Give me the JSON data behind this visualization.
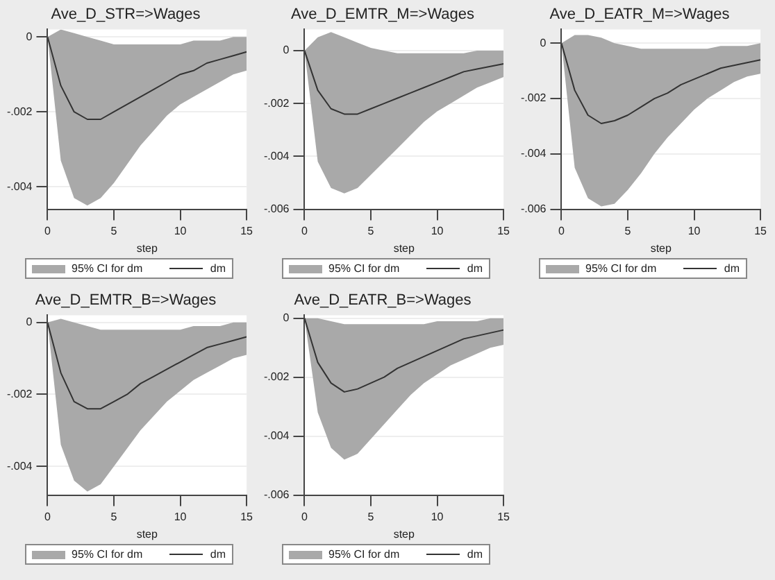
{
  "chart_data": [
    {
      "type": "line",
      "title": "Ave_D_STR=>Wages",
      "xlabel": "step",
      "annotations": [
        "95% CI for dm"
      ],
      "x": [
        0,
        1,
        2,
        3,
        4,
        5,
        6,
        7,
        8,
        9,
        10,
        11,
        12,
        13,
        14,
        15
      ],
      "xlim": [
        0,
        15
      ],
      "xticks": [
        0,
        5,
        10,
        15
      ],
      "ylim": [
        -0.0046,
        0.0002
      ],
      "yticks": [
        {
          "value": 0,
          "label": "0"
        },
        {
          "value": -0.002,
          "label": "-.002"
        },
        {
          "value": -0.004,
          "label": "-.004"
        }
      ],
      "grid": "y",
      "legend": "bottom",
      "series": [
        {
          "name": "dm",
          "type": "line",
          "color": "#333333",
          "values": [
            0,
            -0.0013,
            -0.002,
            -0.0022,
            -0.0022,
            -0.002,
            -0.0018,
            -0.0016,
            -0.0014,
            -0.0012,
            -0.001,
            -0.0009,
            -0.0007,
            -0.0006,
            -0.0005,
            -0.0004
          ],
          "upper": [
            0,
            0.0002,
            0.0001,
            0,
            -0.0001,
            -0.0002,
            -0.0002,
            -0.0002,
            -0.0002,
            -0.0002,
            -0.0002,
            -0.0001,
            -0.0001,
            -0.0001,
            0,
            0
          ],
          "lower": [
            0,
            -0.0033,
            -0.0043,
            -0.0045,
            -0.0043,
            -0.0039,
            -0.0034,
            -0.0029,
            -0.0025,
            -0.0021,
            -0.0018,
            -0.0016,
            -0.0014,
            -0.0012,
            -0.001,
            -0.0009
          ]
        }
      ]
    },
    {
      "type": "line",
      "title": "Ave_D_EMTR_M=>Wages",
      "xlabel": "step",
      "annotations": [
        "95% CI for dm"
      ],
      "x": [
        0,
        1,
        2,
        3,
        4,
        5,
        6,
        7,
        8,
        9,
        10,
        11,
        12,
        13,
        14,
        15
      ],
      "xlim": [
        0,
        15
      ],
      "xticks": [
        0,
        5,
        10,
        15
      ],
      "ylim": [
        -0.006,
        0.0008
      ],
      "yticks": [
        {
          "value": 0,
          "label": "0"
        },
        {
          "value": -0.002,
          "label": "-.002"
        },
        {
          "value": -0.004,
          "label": "-.004"
        },
        {
          "value": -0.006,
          "label": "-.006"
        }
      ],
      "grid": "y",
      "legend": "bottom",
      "series": [
        {
          "name": "dm",
          "type": "line",
          "color": "#333333",
          "values": [
            0,
            -0.0015,
            -0.0022,
            -0.0024,
            -0.0024,
            -0.0022,
            -0.002,
            -0.0018,
            -0.0016,
            -0.0014,
            -0.0012,
            -0.001,
            -0.0008,
            -0.0007,
            -0.0006,
            -0.0005
          ],
          "upper": [
            0,
            0.0005,
            0.0007,
            0.0005,
            0.0003,
            0.0001,
            0,
            -0.0001,
            -0.0001,
            -0.0001,
            -0.0001,
            -0.0001,
            -0.0001,
            0,
            0,
            0
          ],
          "lower": [
            0,
            -0.0042,
            -0.0052,
            -0.0054,
            -0.0052,
            -0.0047,
            -0.0042,
            -0.0037,
            -0.0032,
            -0.0027,
            -0.0023,
            -0.002,
            -0.0017,
            -0.0014,
            -0.0012,
            -0.001
          ]
        }
      ]
    },
    {
      "type": "line",
      "title": "Ave_D_EATR_M=>Wages",
      "xlabel": "step",
      "annotations": [
        "95% CI for dm"
      ],
      "x": [
        0,
        1,
        2,
        3,
        4,
        5,
        6,
        7,
        8,
        9,
        10,
        11,
        12,
        13,
        14,
        15
      ],
      "xlim": [
        0,
        15
      ],
      "xticks": [
        0,
        5,
        10,
        15
      ],
      "ylim": [
        -0.006,
        0.0005
      ],
      "yticks": [
        {
          "value": 0,
          "label": "0"
        },
        {
          "value": -0.002,
          "label": "-.002"
        },
        {
          "value": -0.004,
          "label": "-.004"
        },
        {
          "value": -0.006,
          "label": "-.006"
        }
      ],
      "grid": "y",
      "legend": "bottom",
      "series": [
        {
          "name": "dm",
          "type": "line",
          "color": "#333333",
          "values": [
            0,
            -0.0017,
            -0.0026,
            -0.0029,
            -0.0028,
            -0.0026,
            -0.0023,
            -0.002,
            -0.0018,
            -0.0015,
            -0.0013,
            -0.0011,
            -0.0009,
            -0.0008,
            -0.0007,
            -0.0006
          ],
          "upper": [
            0,
            0.0003,
            0.0003,
            0.0002,
            0,
            -0.0001,
            -0.0002,
            -0.0002,
            -0.0002,
            -0.0002,
            -0.0002,
            -0.0002,
            -0.0001,
            -0.0001,
            -0.0001,
            0
          ],
          "lower": [
            0,
            -0.0045,
            -0.0056,
            -0.0059,
            -0.0058,
            -0.0053,
            -0.0047,
            -0.004,
            -0.0034,
            -0.0029,
            -0.0024,
            -0.002,
            -0.0017,
            -0.0014,
            -0.0012,
            -0.0011
          ]
        }
      ]
    },
    {
      "type": "line",
      "title": "Ave_D_EMTR_B=>Wages",
      "xlabel": "step",
      "annotations": [
        "95% CI for dm"
      ],
      "x": [
        0,
        1,
        2,
        3,
        4,
        5,
        6,
        7,
        8,
        9,
        10,
        11,
        12,
        13,
        14,
        15
      ],
      "xlim": [
        0,
        15
      ],
      "xticks": [
        0,
        5,
        10,
        15
      ],
      "ylim": [
        -0.0048,
        0.0002
      ],
      "yticks": [
        {
          "value": 0,
          "label": "0"
        },
        {
          "value": -0.002,
          "label": "-.002"
        },
        {
          "value": -0.004,
          "label": "-.004"
        }
      ],
      "grid": "y",
      "legend": "bottom",
      "series": [
        {
          "name": "dm",
          "type": "line",
          "color": "#333333",
          "values": [
            0,
            -0.0014,
            -0.0022,
            -0.0024,
            -0.0024,
            -0.0022,
            -0.002,
            -0.0017,
            -0.0015,
            -0.0013,
            -0.0011,
            -0.0009,
            -0.0007,
            -0.0006,
            -0.0005,
            -0.0004
          ],
          "upper": [
            0,
            0.0001,
            0,
            -0.0001,
            -0.0002,
            -0.0002,
            -0.0002,
            -0.0002,
            -0.0002,
            -0.0002,
            -0.0002,
            -0.0001,
            -0.0001,
            -0.0001,
            0,
            0
          ],
          "lower": [
            0,
            -0.0034,
            -0.0044,
            -0.0047,
            -0.0045,
            -0.004,
            -0.0035,
            -0.003,
            -0.0026,
            -0.0022,
            -0.0019,
            -0.0016,
            -0.0014,
            -0.0012,
            -0.001,
            -0.0009
          ]
        }
      ]
    },
    {
      "type": "line",
      "title": "Ave_D_EATR_B=>Wages",
      "xlabel": "step",
      "annotations": [
        "95% CI for dm"
      ],
      "x": [
        0,
        1,
        2,
        3,
        4,
        5,
        6,
        7,
        8,
        9,
        10,
        11,
        12,
        13,
        14,
        15
      ],
      "xlim": [
        0,
        15
      ],
      "xticks": [
        0,
        5,
        10,
        15
      ],
      "ylim": [
        -0.006,
        0.0001
      ],
      "yticks": [
        {
          "value": 0,
          "label": "0"
        },
        {
          "value": -0.002,
          "label": "-.002"
        },
        {
          "value": -0.004,
          "label": "-.004"
        },
        {
          "value": -0.006,
          "label": "-.006"
        }
      ],
      "grid": "y",
      "legend": "bottom",
      "series": [
        {
          "name": "dm",
          "type": "line",
          "color": "#333333",
          "values": [
            0,
            -0.0015,
            -0.0022,
            -0.0025,
            -0.0024,
            -0.0022,
            -0.002,
            -0.0017,
            -0.0015,
            -0.0013,
            -0.0011,
            -0.0009,
            -0.0007,
            -0.0006,
            -0.0005,
            -0.0004
          ],
          "upper": [
            0,
            0,
            -0.0001,
            -0.0002,
            -0.0002,
            -0.0002,
            -0.0002,
            -0.0002,
            -0.0002,
            -0.0002,
            -0.0001,
            -0.0001,
            -0.0001,
            -0.0001,
            0,
            0
          ],
          "lower": [
            0,
            -0.0032,
            -0.0044,
            -0.0048,
            -0.0046,
            -0.0041,
            -0.0036,
            -0.0031,
            -0.0026,
            -0.0022,
            -0.0019,
            -0.0016,
            -0.0014,
            -0.0012,
            -0.001,
            -0.0009
          ]
        }
      ]
    }
  ]
}
